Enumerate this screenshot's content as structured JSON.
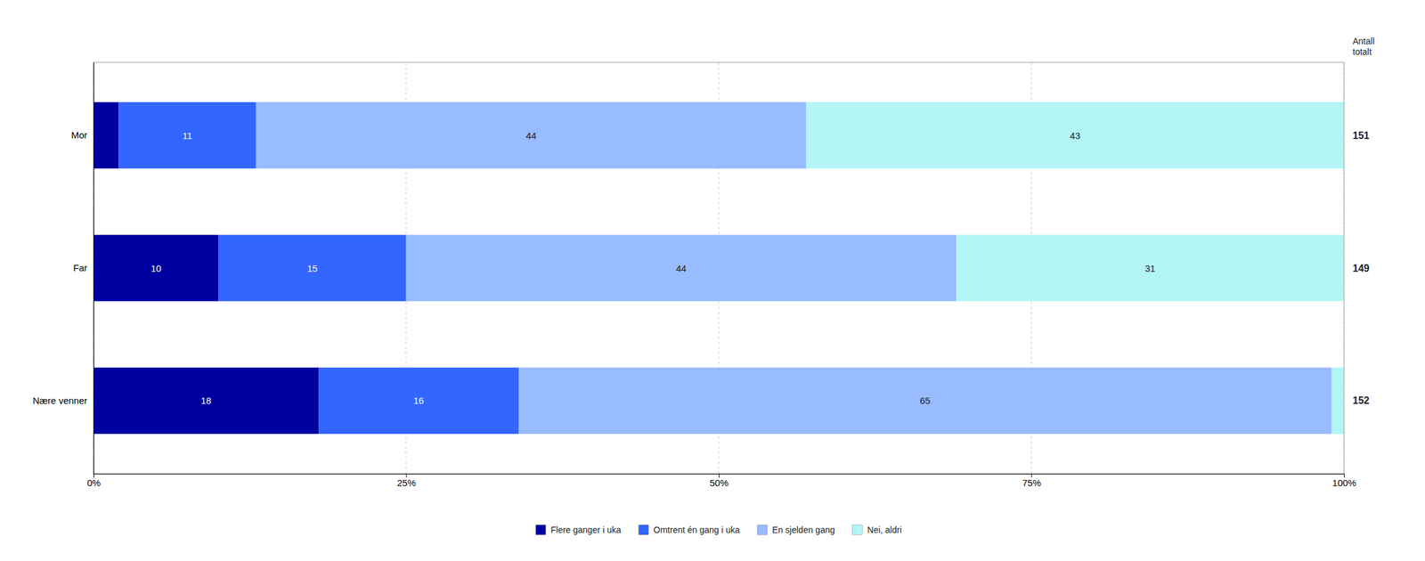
{
  "chart_data": {
    "type": "bar",
    "orientation": "horizontal",
    "stacked": true,
    "categories": [
      "Mor",
      "Far",
      "Nære venner"
    ],
    "series": [
      {
        "name": "Flere ganger i uka",
        "color": "#0000a0",
        "values": [
          2,
          10,
          18
        ],
        "value_labels": [
          null,
          "10",
          "18"
        ]
      },
      {
        "name": "Omtrent én gang i uka",
        "color": "#3366ff",
        "values": [
          11,
          15,
          16
        ]
      },
      {
        "name": "En sjelden gang",
        "color": "#99bbff",
        "values": [
          44,
          44,
          65
        ]
      },
      {
        "name": "Nei, aldri",
        "color": "#b3f5f5",
        "values": [
          43,
          31,
          1
        ],
        "value_labels": [
          "43",
          "31",
          null
        ]
      }
    ],
    "xlim": [
      0,
      100
    ],
    "xticks": [
      {
        "value": 0,
        "label": "0%"
      },
      {
        "value": 25,
        "label": "25%"
      },
      {
        "value": 50,
        "label": "50%"
      },
      {
        "value": 75,
        "label": "75%"
      },
      {
        "value": 100,
        "label": "100%"
      }
    ],
    "grid": true,
    "data_labels": true,
    "legend": "bottom",
    "totals_label": "Antall\ntotalt",
    "totals": [
      151,
      149,
      152
    ]
  }
}
